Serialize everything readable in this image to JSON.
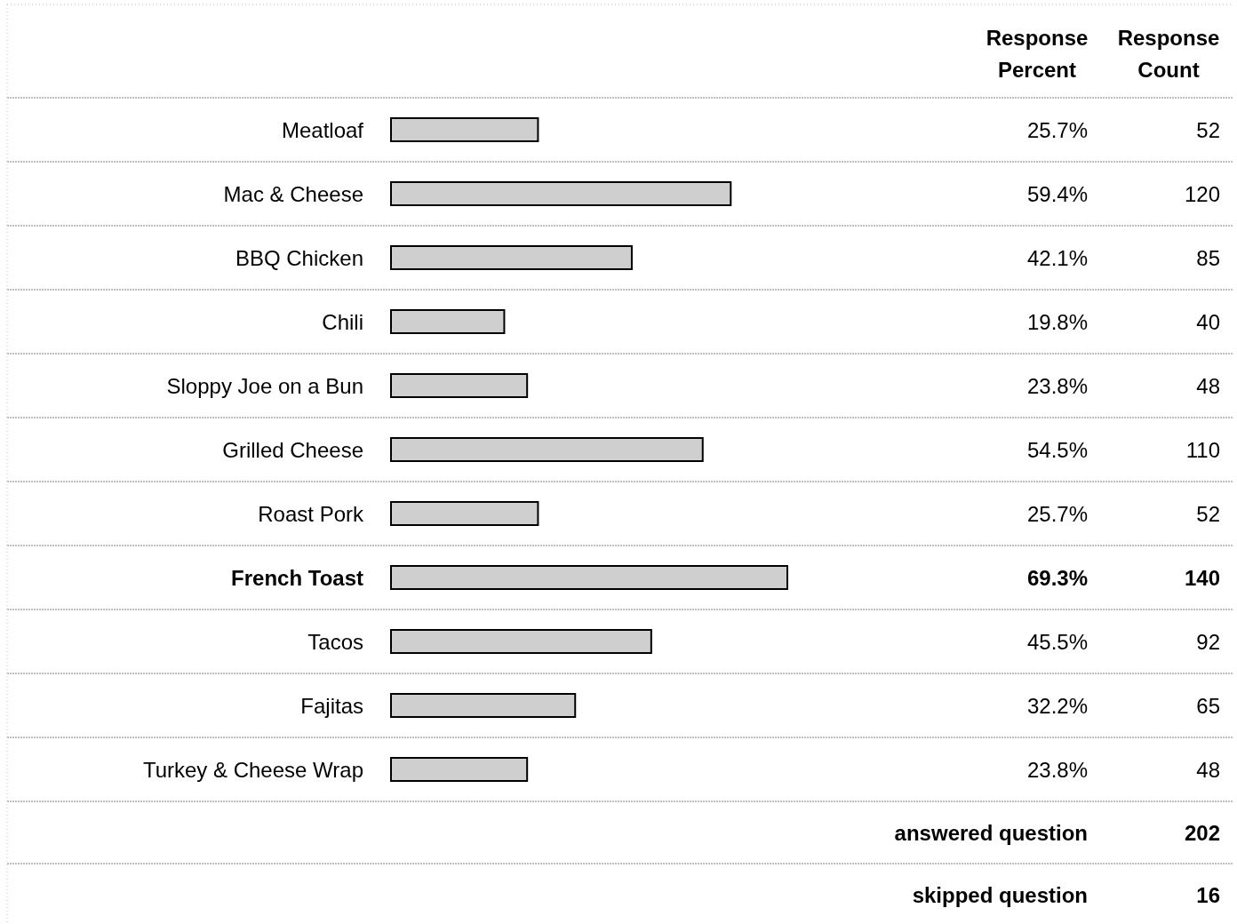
{
  "chart_data": {
    "type": "bar",
    "orientation": "horizontal",
    "grid": true,
    "categories": [
      "Meatloaf",
      "Mac & Cheese",
      "BBQ Chicken",
      "Chili",
      "Sloppy Joe on a Bun",
      "Grilled Cheese",
      "Roast Pork",
      "French Toast",
      "Tacos",
      "Fajitas",
      "Turkey & Cheese Wrap"
    ],
    "series": [
      {
        "name": "Response Percent",
        "color": "#cfcfcf",
        "values": [
          25.7,
          59.4,
          42.1,
          19.8,
          23.8,
          54.5,
          25.7,
          69.3,
          45.5,
          32.2,
          23.8
        ],
        "value_labels": [
          "25.7%",
          "59.4%",
          "42.1%",
          "19.8%",
          "23.8%",
          "54.5%",
          "25.7%",
          "69.3%",
          "45.5%",
          "32.2%",
          "23.8%"
        ]
      }
    ],
    "annotations": [
      "Response Count",
      "52",
      "120",
      "85",
      "40",
      "48",
      "110",
      "52",
      "140",
      "92",
      "65",
      "48",
      "answered question",
      "202",
      "skipped question",
      "16"
    ]
  }
}
